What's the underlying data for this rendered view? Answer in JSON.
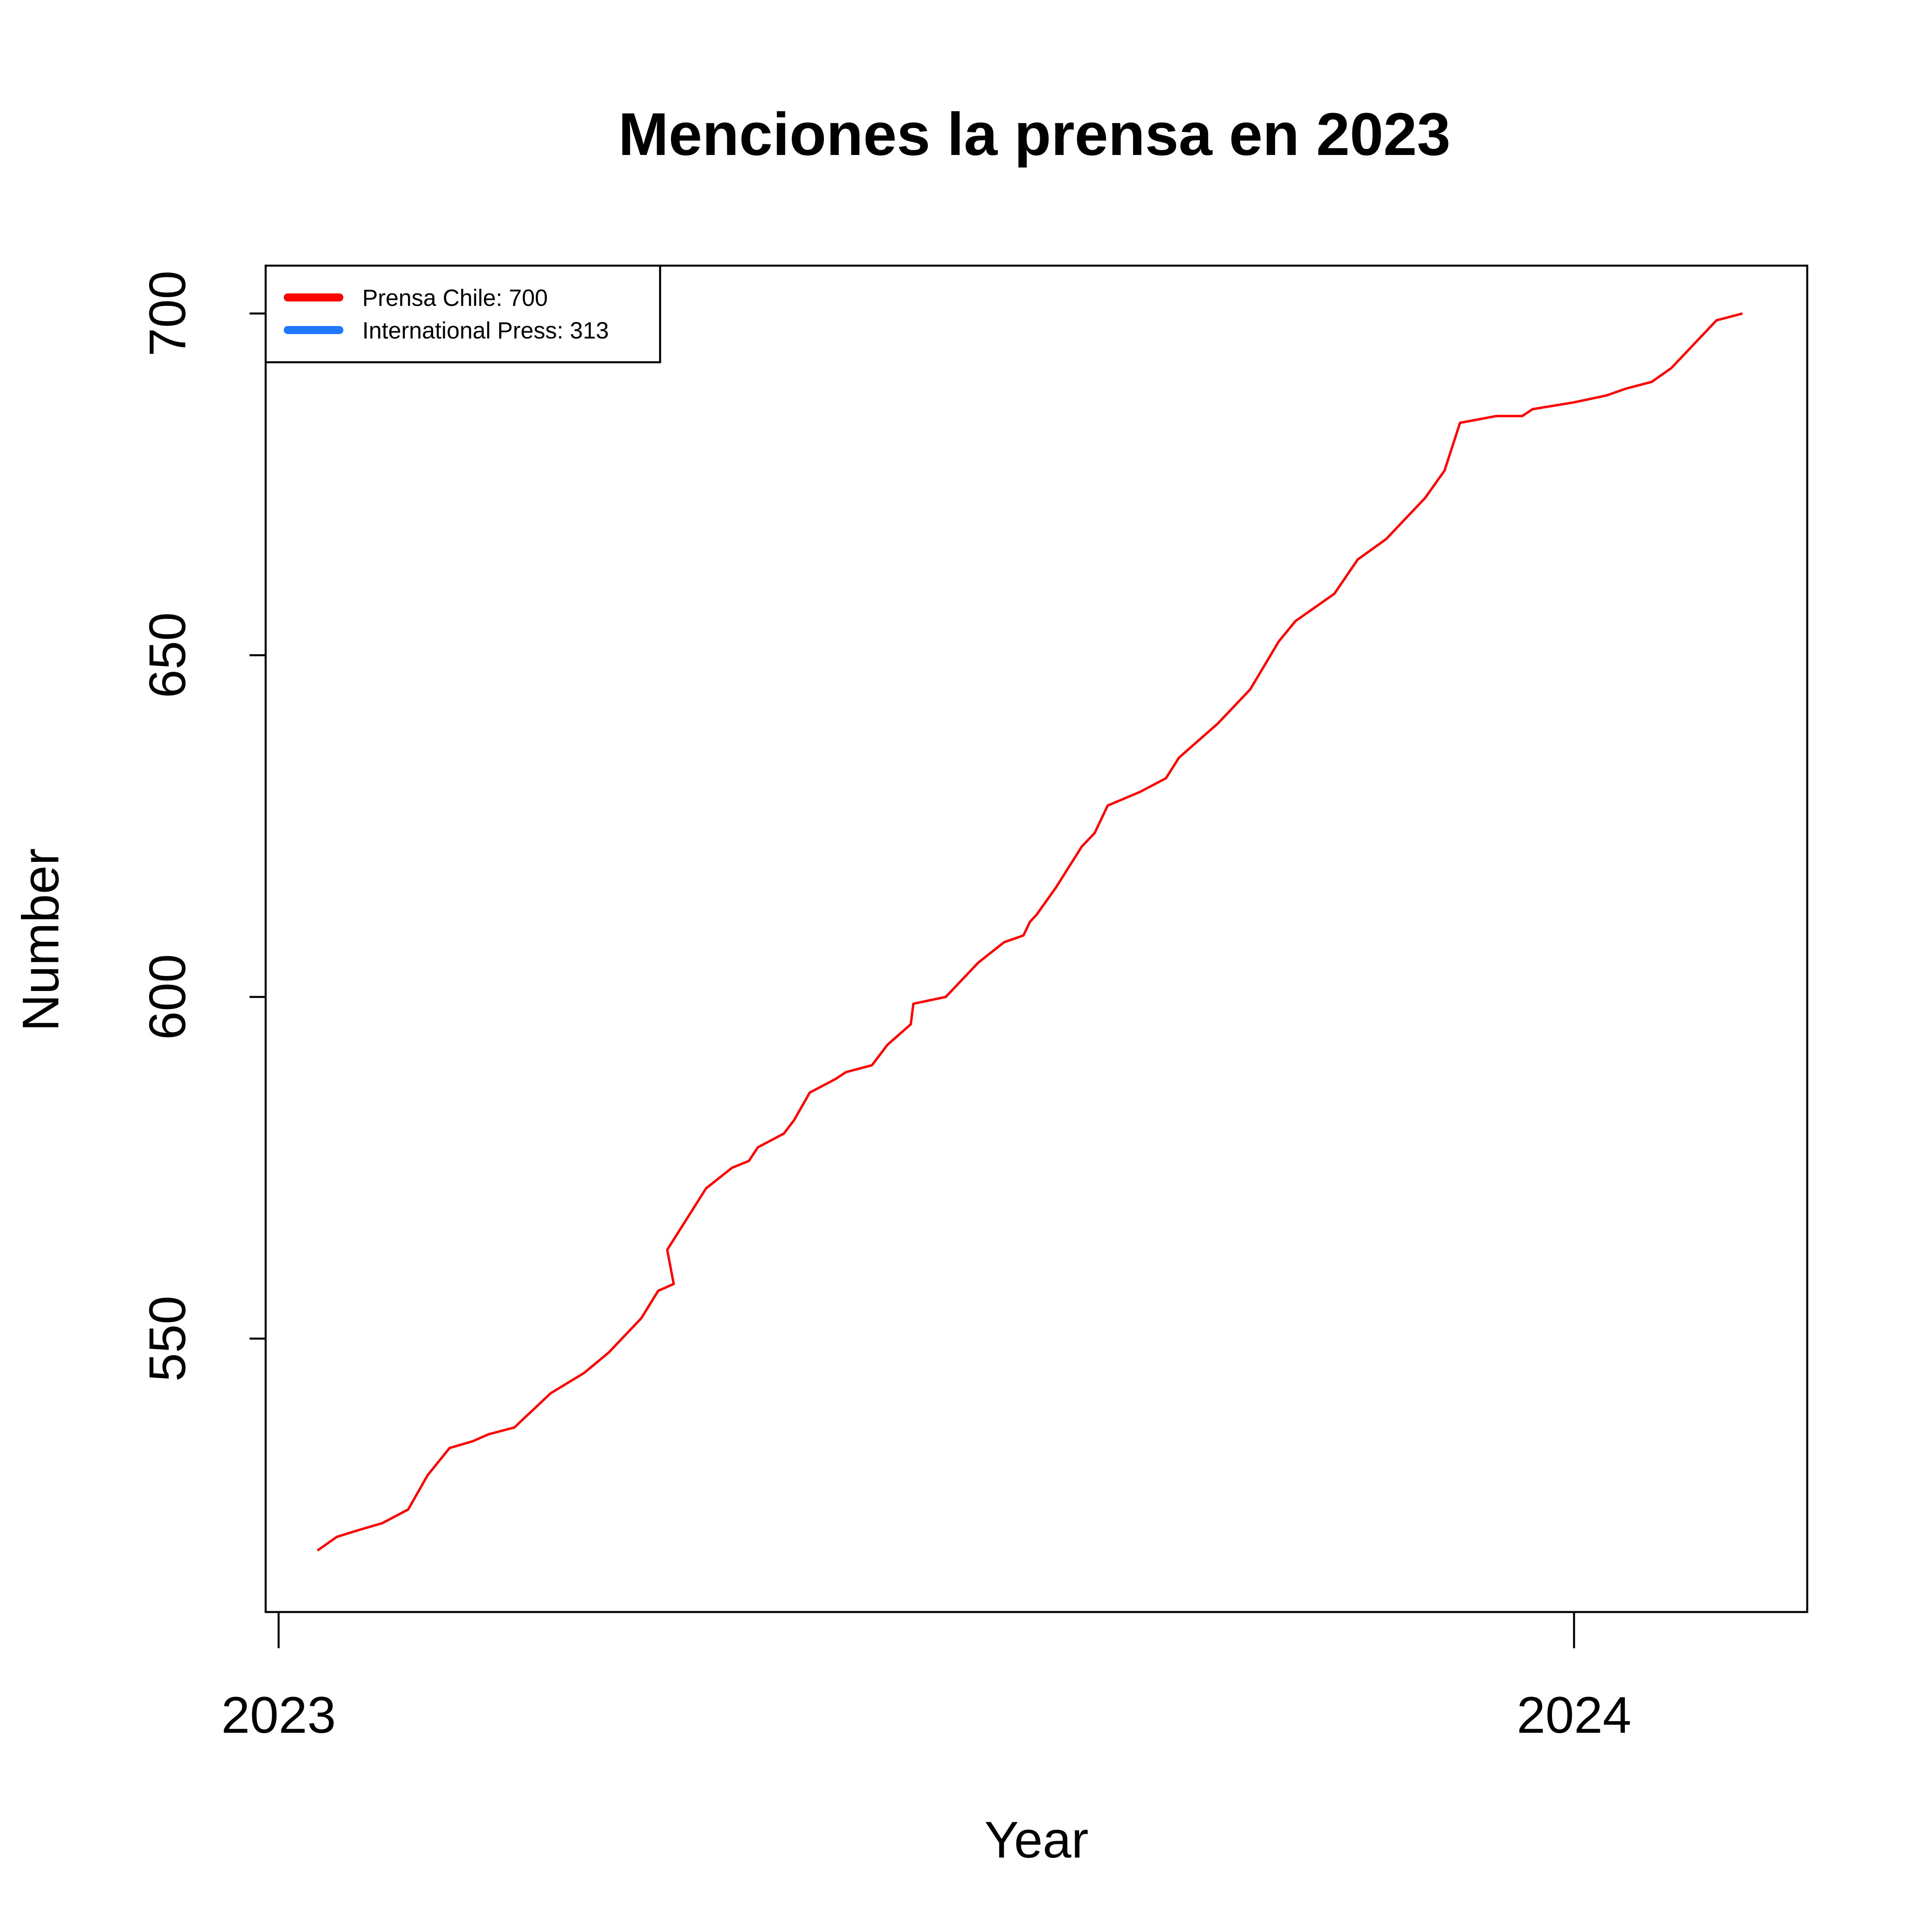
{
  "chart_data": {
    "type": "line",
    "title": "Menciones la prensa en 2023",
    "xlabel": "Year",
    "ylabel": "Number",
    "xlim": [
      2022.99,
      2024.18
    ],
    "ylim": [
      510,
      707
    ],
    "x_ticks": [
      2023,
      2024
    ],
    "x_tick_labels": [
      "2023",
      "2024"
    ],
    "y_ticks": [
      550,
      600,
      650,
      700
    ],
    "y_tick_labels": [
      "550",
      "600",
      "650",
      "700"
    ],
    "grid": false,
    "legend_position": "top-left",
    "legend": [
      {
        "label": "Prensa Chile: 700",
        "color": "#ff0000"
      },
      {
        "label": "International Press: 313",
        "color": "#1f78ff"
      }
    ],
    "series": [
      {
        "name": "Prensa Chile",
        "color": "#ff0000",
        "x": [
          2023.03,
          2023.045,
          2023.062,
          2023.08,
          2023.1,
          2023.115,
          2023.132,
          2023.15,
          2023.162,
          2023.182,
          2023.21,
          2023.236,
          2023.255,
          2023.265,
          2023.28,
          2023.293,
          2023.305,
          2023.3,
          2023.33,
          2023.35,
          2023.363,
          2023.37,
          2023.38,
          2023.39,
          2023.398,
          2023.41,
          2023.42,
          2023.43,
          2023.438,
          2023.458,
          2023.47,
          2023.488,
          2023.49,
          2023.515,
          2023.53,
          2023.54,
          2023.56,
          2023.575,
          2023.58,
          2023.585,
          2023.6,
          2023.61,
          2023.62,
          2023.63,
          2023.64,
          2023.665,
          2023.685,
          2023.695,
          2023.725,
          2023.75,
          2023.772,
          2023.785,
          2023.8,
          2023.815,
          2023.833,
          2023.855,
          2023.87,
          2023.885,
          2023.9,
          2023.912,
          2023.94,
          2023.96,
          2023.968,
          2024.0,
          2024.025,
          2024.04,
          2024.06,
          2024.075,
          2024.09,
          2024.11,
          2024.13
        ],
        "values": [
          519,
          521,
          522,
          523,
          525,
          530,
          534,
          535,
          536,
          537,
          542,
          545,
          548,
          550,
          553,
          557,
          558,
          563,
          572,
          575,
          576,
          578,
          579,
          580,
          582,
          586,
          587,
          588,
          589,
          590,
          593,
          596,
          599,
          600,
          603,
          605,
          608,
          609,
          611,
          612,
          616,
          619,
          622,
          624,
          628,
          630,
          632,
          635,
          640,
          645,
          652,
          655,
          657,
          659,
          664,
          667,
          670,
          673,
          677,
          684,
          685,
          685,
          686,
          687,
          688,
          689,
          690,
          692,
          695,
          699,
          700
        ]
      }
    ]
  }
}
